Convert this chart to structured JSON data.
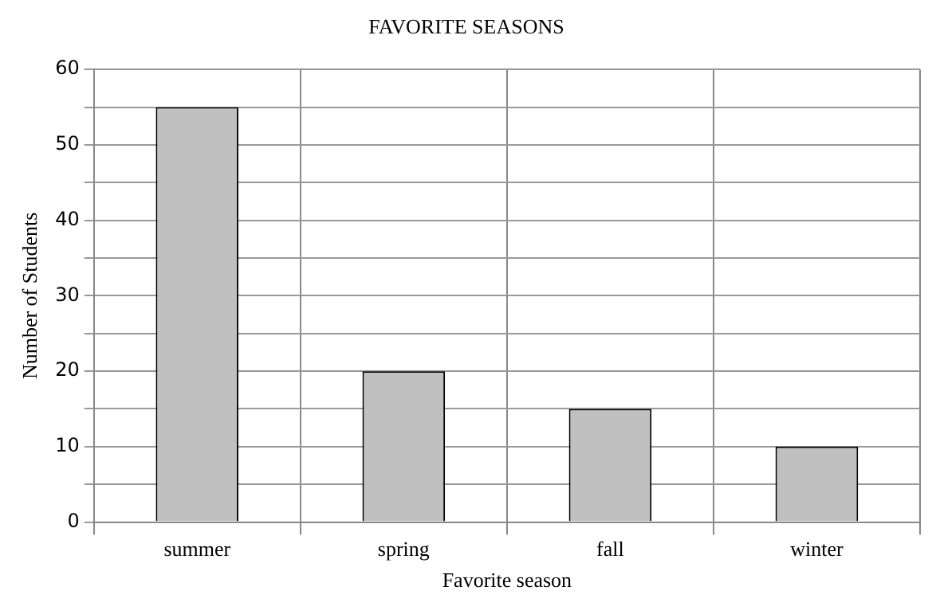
{
  "chart_data": {
    "type": "bar",
    "title": "FAVORITE SEASONS",
    "xlabel": "Favorite season",
    "ylabel": "Number of Students",
    "categories": [
      "summer",
      "spring",
      "fall",
      "winter"
    ],
    "values": [
      55,
      20,
      15,
      10
    ],
    "color": "#c0c0c0",
    "ylim": [
      0,
      60
    ],
    "yticks": [
      0,
      {
        "value": 5,
        "label": null
      },
      10,
      {
        "value": 15,
        "label": null
      },
      20,
      {
        "value": 25,
        "label": null
      },
      30,
      {
        "value": 35,
        "label": null
      },
      40,
      {
        "value": 45,
        "label": null
      },
      50,
      {
        "value": 55,
        "label": null
      },
      60
    ],
    "grid": true
  }
}
